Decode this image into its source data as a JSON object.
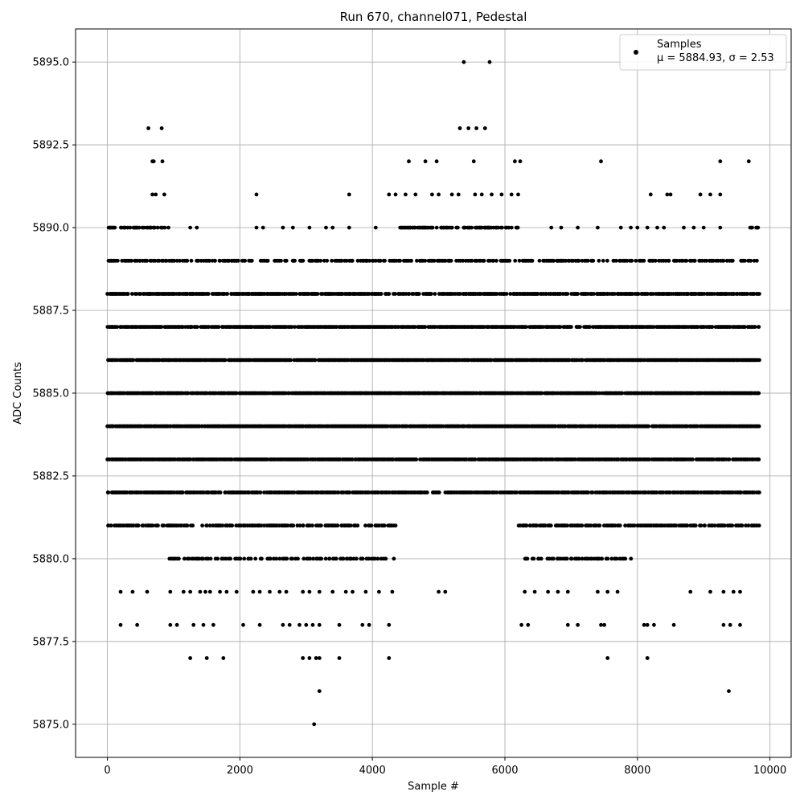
{
  "chart_data": {
    "type": "scatter",
    "title": "Run 670, channel071, Pedestal",
    "xlabel": "Sample #",
    "ylabel": "ADC Counts",
    "xlim": [
      -480,
      10320
    ],
    "ylim": [
      5874.0,
      5896.0
    ],
    "x_ticks": [
      0,
      2000,
      4000,
      6000,
      8000,
      10000
    ],
    "x_tick_labels": [
      "0",
      "2000",
      "4000",
      "6000",
      "8000",
      "10000"
    ],
    "y_ticks": [
      5875.0,
      5877.5,
      5880.0,
      5882.5,
      5885.0,
      5887.5,
      5890.0,
      5892.5,
      5895.0
    ],
    "y_tick_labels": [
      "5875.0",
      "5877.5",
      "5880.0",
      "5882.5",
      "5885.0",
      "5887.5",
      "5890.0",
      "5892.5",
      "5895.0"
    ],
    "grid": true,
    "legend": {
      "placement": "top-right",
      "entries": [
        {
          "label": "Samples",
          "stats": "μ = 5884.93, σ = 2.53",
          "marker_color": "#000000"
        }
      ]
    },
    "series": [
      {
        "name": "Samples",
        "color": "#000000",
        "n_samples": 9832,
        "bands": [
          {
            "y": 5888,
            "x_ranges": [
              [
                0,
                9832
              ]
            ],
            "density": 0.7
          },
          {
            "y": 5887,
            "x_ranges": [
              [
                0,
                9832
              ]
            ],
            "density": 0.8
          },
          {
            "y": 5886,
            "x_ranges": [
              [
                0,
                9832
              ]
            ],
            "density": 0.9
          },
          {
            "y": 5885,
            "x_ranges": [
              [
                0,
                9832
              ]
            ],
            "density": 0.9
          },
          {
            "y": 5884,
            "x_ranges": [
              [
                0,
                9832
              ]
            ],
            "density": 0.9
          },
          {
            "y": 5883,
            "x_ranges": [
              [
                0,
                9832
              ]
            ],
            "density": 0.85
          },
          {
            "y": 5882,
            "x_ranges": [
              [
                0,
                9832
              ]
            ],
            "density": 0.75
          },
          {
            "y": 5889,
            "x_ranges": [
              [
                0,
                9832
              ]
            ],
            "density": 0.45
          },
          {
            "y": 5881,
            "x_ranges": [
              [
                0,
                4350
              ],
              [
                6200,
                9832
              ]
            ],
            "density": 0.55
          },
          {
            "y": 5890,
            "x_ranges": [
              [
                0,
                950
              ],
              [
                4400,
                6200
              ],
              [
                9700,
                9832
              ]
            ],
            "density": 0.5
          },
          {
            "y": 5880,
            "x_ranges": [
              [
                900,
                4350
              ],
              [
                6300,
                7900
              ]
            ],
            "density": 0.35
          }
        ],
        "points": [
          [
            200,
            5879
          ],
          [
            380,
            5879
          ],
          [
            600,
            5879
          ],
          [
            950,
            5879
          ],
          [
            1150,
            5879
          ],
          [
            1250,
            5879
          ],
          [
            1400,
            5879
          ],
          [
            1480,
            5879
          ],
          [
            1550,
            5879
          ],
          [
            1700,
            5879
          ],
          [
            1800,
            5879
          ],
          [
            1950,
            5879
          ],
          [
            2200,
            5879
          ],
          [
            2300,
            5879
          ],
          [
            2450,
            5879
          ],
          [
            2600,
            5879
          ],
          [
            2700,
            5879
          ],
          [
            2950,
            5879
          ],
          [
            3050,
            5879
          ],
          [
            3200,
            5879
          ],
          [
            3400,
            5879
          ],
          [
            3600,
            5879
          ],
          [
            3700,
            5879
          ],
          [
            3900,
            5879
          ],
          [
            4100,
            5879
          ],
          [
            4300,
            5879
          ],
          [
            5000,
            5879
          ],
          [
            5100,
            5879
          ],
          [
            6300,
            5879
          ],
          [
            6450,
            5879
          ],
          [
            6650,
            5879
          ],
          [
            6800,
            5879
          ],
          [
            6950,
            5879
          ],
          [
            7400,
            5879
          ],
          [
            7550,
            5879
          ],
          [
            7700,
            5879
          ],
          [
            8800,
            5879
          ],
          [
            9100,
            5879
          ],
          [
            9300,
            5879
          ],
          [
            9450,
            5879
          ],
          [
            9550,
            5879
          ],
          [
            200,
            5878
          ],
          [
            450,
            5878
          ],
          [
            950,
            5878
          ],
          [
            1050,
            5878
          ],
          [
            1300,
            5878
          ],
          [
            1450,
            5878
          ],
          [
            1600,
            5878
          ],
          [
            2050,
            5878
          ],
          [
            2300,
            5878
          ],
          [
            2650,
            5878
          ],
          [
            2750,
            5878
          ],
          [
            2900,
            5878
          ],
          [
            3000,
            5878
          ],
          [
            3100,
            5878
          ],
          [
            3200,
            5878
          ],
          [
            3500,
            5878
          ],
          [
            3850,
            5878
          ],
          [
            3950,
            5878
          ],
          [
            4250,
            5878
          ],
          [
            6250,
            5878
          ],
          [
            6350,
            5878
          ],
          [
            6950,
            5878
          ],
          [
            7100,
            5878
          ],
          [
            7450,
            5878
          ],
          [
            7500,
            5878
          ],
          [
            8100,
            5878
          ],
          [
            8150,
            5878
          ],
          [
            8250,
            5878
          ],
          [
            8550,
            5878
          ],
          [
            9300,
            5878
          ],
          [
            9400,
            5878
          ],
          [
            9550,
            5878
          ],
          [
            1250,
            5877
          ],
          [
            1500,
            5877
          ],
          [
            1750,
            5877
          ],
          [
            2950,
            5877
          ],
          [
            3050,
            5877
          ],
          [
            3150,
            5877
          ],
          [
            3200,
            5877
          ],
          [
            3500,
            5877
          ],
          [
            4250,
            5877
          ],
          [
            7550,
            5877
          ],
          [
            8150,
            5877
          ],
          [
            3200,
            5876
          ],
          [
            9380,
            5876
          ],
          [
            3120,
            5875
          ],
          [
            250,
            5890
          ],
          [
            550,
            5890
          ],
          [
            700,
            5890
          ],
          [
            1250,
            5890
          ],
          [
            1350,
            5890
          ],
          [
            2250,
            5890
          ],
          [
            2350,
            5890
          ],
          [
            2650,
            5890
          ],
          [
            2800,
            5890
          ],
          [
            3050,
            5890
          ],
          [
            3300,
            5890
          ],
          [
            3400,
            5890
          ],
          [
            3650,
            5890
          ],
          [
            4050,
            5890
          ],
          [
            6700,
            5890
          ],
          [
            6850,
            5890
          ],
          [
            7100,
            5890
          ],
          [
            7400,
            5890
          ],
          [
            7750,
            5890
          ],
          [
            7900,
            5890
          ],
          [
            8000,
            5890
          ],
          [
            8150,
            5890
          ],
          [
            8300,
            5890
          ],
          [
            8400,
            5890
          ],
          [
            8700,
            5890
          ],
          [
            8850,
            5890
          ],
          [
            9000,
            5890
          ],
          [
            9250,
            5890
          ],
          [
            680,
            5891
          ],
          [
            730,
            5891
          ],
          [
            860,
            5891
          ],
          [
            2250,
            5891
          ],
          [
            3650,
            5891
          ],
          [
            4250,
            5891
          ],
          [
            4350,
            5891
          ],
          [
            4500,
            5891
          ],
          [
            4650,
            5891
          ],
          [
            4900,
            5891
          ],
          [
            5000,
            5891
          ],
          [
            5200,
            5891
          ],
          [
            5300,
            5891
          ],
          [
            5550,
            5891
          ],
          [
            5650,
            5891
          ],
          [
            5800,
            5891
          ],
          [
            5950,
            5891
          ],
          [
            6100,
            5891
          ],
          [
            6200,
            5891
          ],
          [
            8200,
            5891
          ],
          [
            8450,
            5891
          ],
          [
            8500,
            5891
          ],
          [
            8950,
            5891
          ],
          [
            9100,
            5891
          ],
          [
            9250,
            5891
          ],
          [
            680,
            5892
          ],
          [
            700,
            5892
          ],
          [
            830,
            5892
          ],
          [
            4550,
            5892
          ],
          [
            4800,
            5892
          ],
          [
            4970,
            5892
          ],
          [
            5530,
            5892
          ],
          [
            6150,
            5892
          ],
          [
            6230,
            5892
          ],
          [
            7450,
            5892
          ],
          [
            9250,
            5892
          ],
          [
            9680,
            5892
          ],
          [
            620,
            5893
          ],
          [
            820,
            5893
          ],
          [
            5320,
            5893
          ],
          [
            5450,
            5893
          ],
          [
            5570,
            5893
          ],
          [
            5700,
            5893
          ],
          [
            5380,
            5895
          ],
          [
            5770,
            5895
          ]
        ]
      }
    ]
  }
}
